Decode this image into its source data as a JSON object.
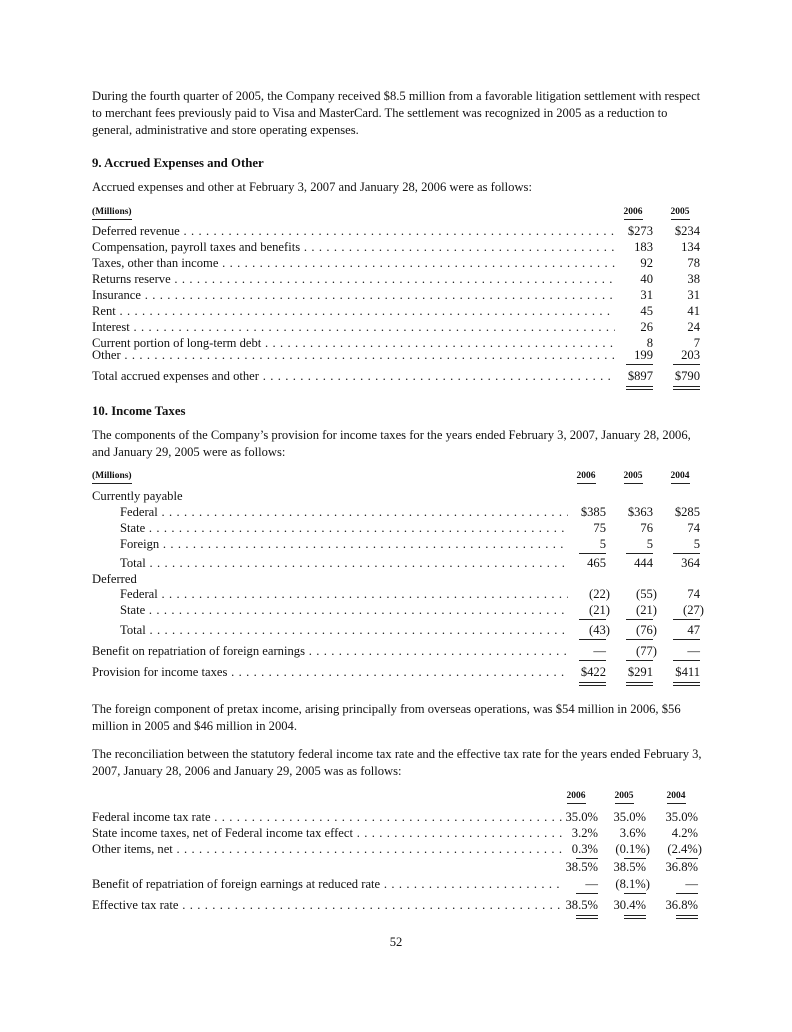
{
  "intro_paragraph": "During the fourth quarter of 2005, the Company received $8.5 million from a favorable litigation settlement with respect to merchant fees previously paid to Visa and MasterCard. The settlement was recognized in 2005 as a reduction to general, administrative and store operating expenses.",
  "section9": {
    "heading": "9. Accrued Expenses and Other",
    "intro": "Accrued expenses and other at February 3, 2007 and January 28, 2006 were as follows:",
    "table": {
      "unit_header": "(Millions)",
      "columns": [
        "2006",
        "2005"
      ],
      "rows": [
        {
          "label": "Deferred revenue",
          "values": [
            "$273",
            "$234"
          ]
        },
        {
          "label": "Compensation, payroll taxes and benefits",
          "values": [
            "183",
            "134"
          ]
        },
        {
          "label": "Taxes, other than income",
          "values": [
            "92",
            "78"
          ]
        },
        {
          "label": "Returns reserve",
          "values": [
            "40",
            "38"
          ]
        },
        {
          "label": "Insurance",
          "values": [
            "31",
            "31"
          ]
        },
        {
          "label": "Rent",
          "values": [
            "45",
            "41"
          ]
        },
        {
          "label": "Interest",
          "values": [
            "26",
            "24"
          ]
        },
        {
          "label": "Current portion of long-term debt",
          "values": [
            "8",
            "7"
          ]
        },
        {
          "label": "Other",
          "values": [
            "199",
            "203"
          ]
        },
        {
          "label": "Total accrued expenses and other",
          "values": [
            "$897",
            "$790"
          ]
        }
      ]
    }
  },
  "section10": {
    "heading": "10. Income Taxes",
    "intro": "The components of the Company’s provision for income taxes for the years ended February 3, 2007, January 28, 2006, and January 29, 2005 were as follows:",
    "table": {
      "unit_header": "(Millions)",
      "columns": [
        "2006",
        "2005",
        "2004"
      ],
      "rows": [
        {
          "label": "Currently payable",
          "values": []
        },
        {
          "label": "Federal",
          "values": [
            "$385",
            "$363",
            "$285"
          ]
        },
        {
          "label": "State",
          "values": [
            "75",
            "76",
            "74"
          ]
        },
        {
          "label": "Foreign",
          "values": [
            "5",
            "5",
            "5"
          ]
        },
        {
          "label": "Total",
          "values": [
            "465",
            "444",
            "364"
          ]
        },
        {
          "label": "Deferred",
          "values": []
        },
        {
          "label": "Federal",
          "values": [
            "(22)",
            "(55)",
            "74"
          ]
        },
        {
          "label": "State",
          "values": [
            "(21)",
            "(21)",
            "(27)"
          ]
        },
        {
          "label": "Total",
          "values": [
            "(43)",
            "(76)",
            "47"
          ]
        },
        {
          "label": "Benefit on repatriation of foreign earnings",
          "values": [
            "—",
            "(77)",
            "—"
          ]
        },
        {
          "label": "Provision for income taxes",
          "values": [
            "$422",
            "$291",
            "$411"
          ]
        }
      ]
    },
    "foreign_paragraph": "The foreign component of pretax income, arising principally from overseas operations, was $54 million in 2006, $56 million in 2005 and $46 million in 2004.",
    "reconciliation_intro": "The reconciliation between the statutory federal income tax rate and the effective tax rate for the years ended February 3, 2007, January 28, 2006 and January 29, 2005 was as follows:",
    "rate_table": {
      "columns": [
        "2006",
        "2005",
        "2004"
      ],
      "rows": [
        {
          "label": "Federal income tax rate",
          "values": [
            "35.0%",
            "35.0%",
            "35.0%"
          ]
        },
        {
          "label": "State income taxes, net of Federal income tax effect",
          "values": [
            "3.2%",
            "3.6%",
            "4.2%"
          ]
        },
        {
          "label": "Other items, net",
          "values": [
            "0.3%",
            "(0.1%)",
            "(2.4%)"
          ]
        },
        {
          "label": "",
          "values": [
            "38.5%",
            "38.5%",
            "36.8%"
          ]
        },
        {
          "label": "Benefit of repatriation of foreign earnings at reduced rate",
          "values": [
            "—",
            "(8.1%)",
            "—"
          ]
        },
        {
          "label": "Effective tax rate",
          "values": [
            "38.5%",
            "30.4%",
            "36.8%"
          ]
        }
      ]
    }
  },
  "page_number": "52"
}
